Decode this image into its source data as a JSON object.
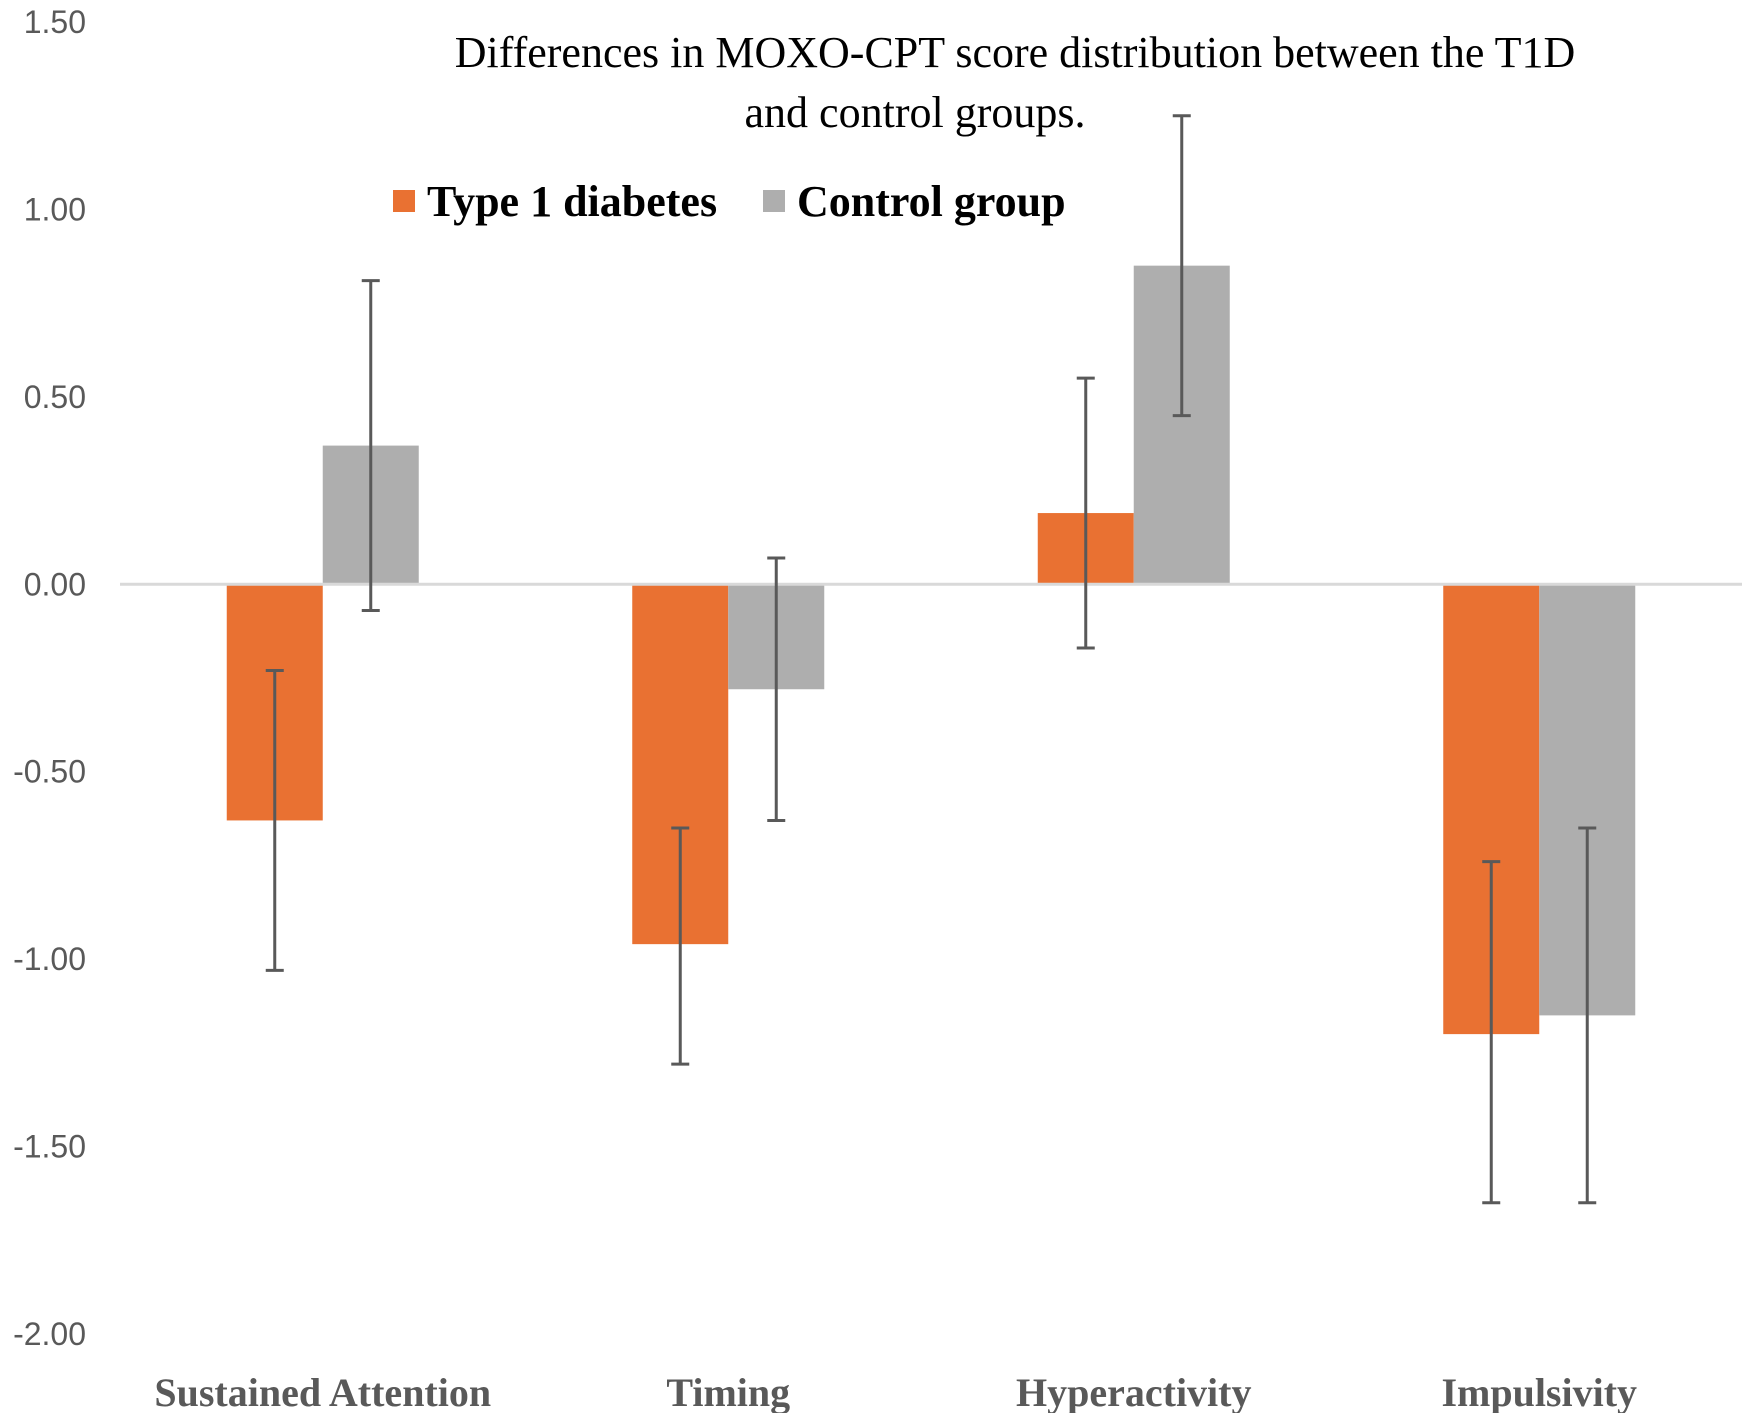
{
  "chart_data": {
    "type": "bar",
    "title_lines": [
      "Differences in MOXO-CPT score distribution between the T1D",
      "and control groups."
    ],
    "categories": [
      "Sustained Attention",
      "Timing",
      "Hyperactivity",
      "Impulsivity"
    ],
    "series": [
      {
        "name": "Type 1 diabetes",
        "color": "#E97132",
        "values": [
          -0.63,
          -0.96,
          0.19,
          -1.2
        ],
        "error_low": [
          -1.03,
          -1.28,
          -0.17,
          -1.65
        ],
        "error_high": [
          -0.23,
          -0.65,
          0.55,
          -0.74
        ]
      },
      {
        "name": "Control group",
        "color": "#AEAEAE",
        "values": [
          0.37,
          -0.28,
          0.85,
          -1.15
        ],
        "error_low": [
          -0.07,
          -0.63,
          0.45,
          -1.65
        ],
        "error_high": [
          0.81,
          0.07,
          1.25,
          -0.65
        ]
      }
    ],
    "yticks": [
      "1.50",
      "1.00",
      "0.50",
      "0.00",
      "-0.50",
      "-1.00",
      "-1.50",
      "-2.00"
    ],
    "ylim": [
      -2.0,
      1.5
    ],
    "xlabel": "",
    "ylabel": "",
    "grid": false,
    "legend_position": "top-center"
  }
}
